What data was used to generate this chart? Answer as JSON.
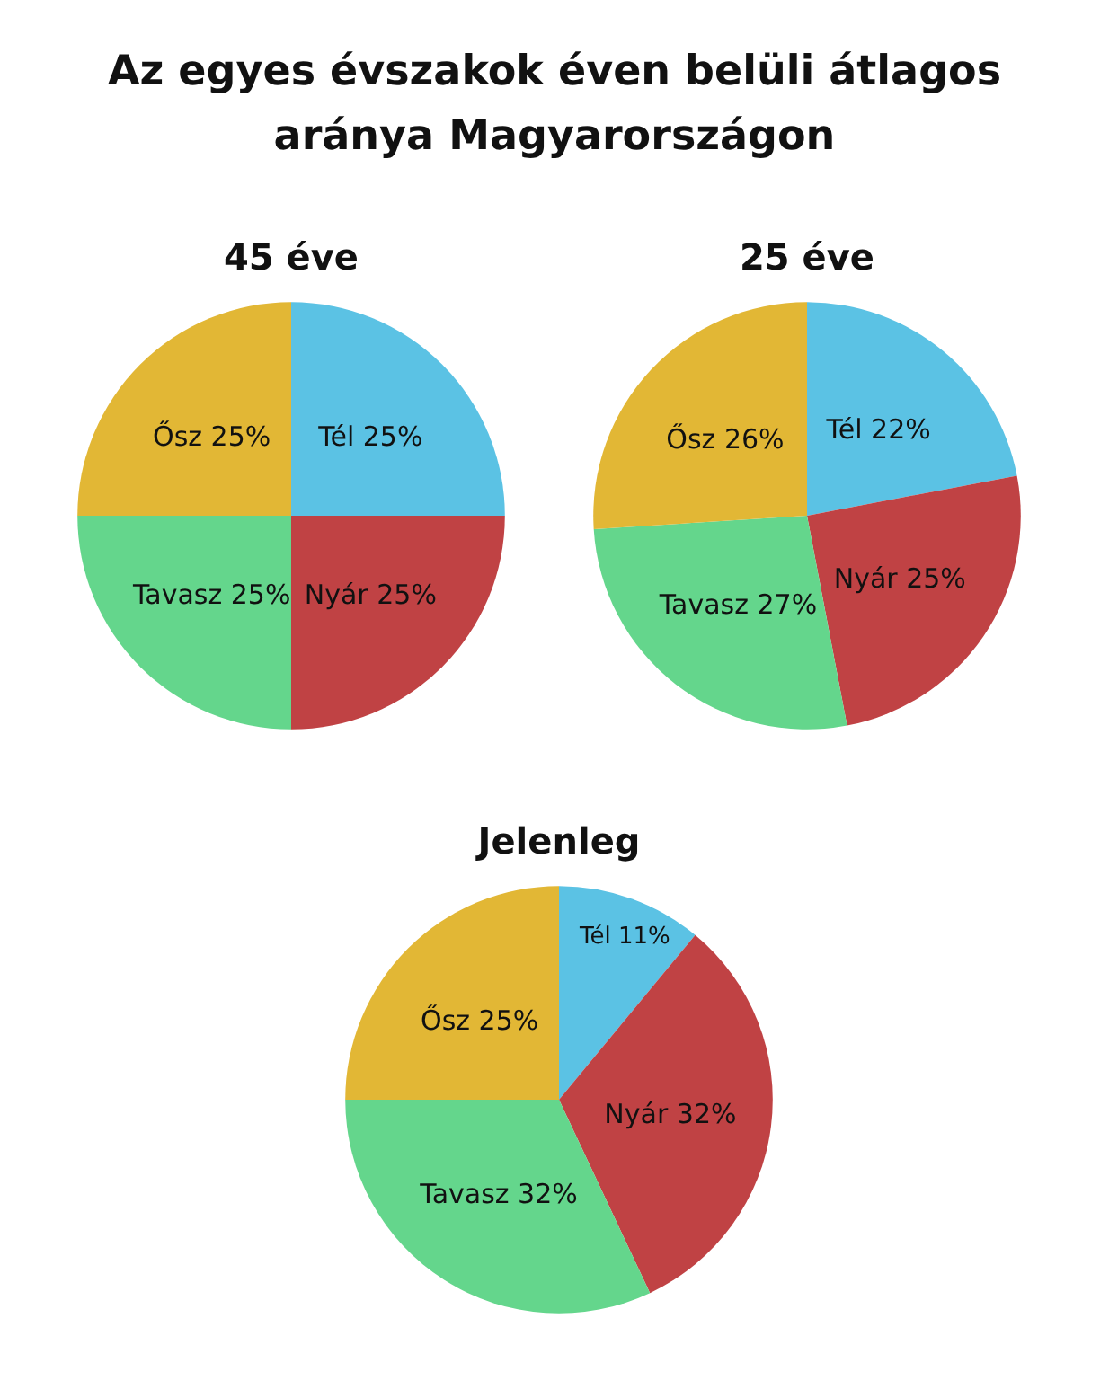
{
  "chart_data": [
    {
      "type": "pie",
      "title": "Az egyes évszakok éven belüli átlagos aránya Magyarországon",
      "subtitle": "45 éve",
      "categories": [
        "Tél",
        "Nyár",
        "Tavasz",
        "Ősz"
      ],
      "values": [
        25,
        25,
        25,
        25
      ],
      "value_labels": [
        "25%",
        "25%",
        "25%",
        "25%"
      ],
      "colors": [
        "#5bc2e4",
        "#c04244",
        "#64d68c",
        "#e2b735"
      ],
      "legend": false
    },
    {
      "type": "pie",
      "subtitle": "25 éve",
      "categories": [
        "Tél",
        "Nyár",
        "Tavasz",
        "Ősz"
      ],
      "values": [
        22,
        25,
        27,
        26
      ],
      "value_labels": [
        "22%",
        "25%",
        "27%",
        "26%"
      ],
      "colors": [
        "#5bc2e4",
        "#c04244",
        "#64d68c",
        "#e2b735"
      ],
      "legend": false
    },
    {
      "type": "pie",
      "subtitle": "Jelenleg",
      "categories": [
        "Tél",
        "Nyár",
        "Tavasz",
        "Ősz"
      ],
      "values": [
        11,
        32,
        32,
        25
      ],
      "value_labels": [
        "11%",
        "32%",
        "32%",
        "25%"
      ],
      "colors": [
        "#5bc2e4",
        "#c04244",
        "#64d68c",
        "#e2b735"
      ],
      "legend": false
    }
  ]
}
